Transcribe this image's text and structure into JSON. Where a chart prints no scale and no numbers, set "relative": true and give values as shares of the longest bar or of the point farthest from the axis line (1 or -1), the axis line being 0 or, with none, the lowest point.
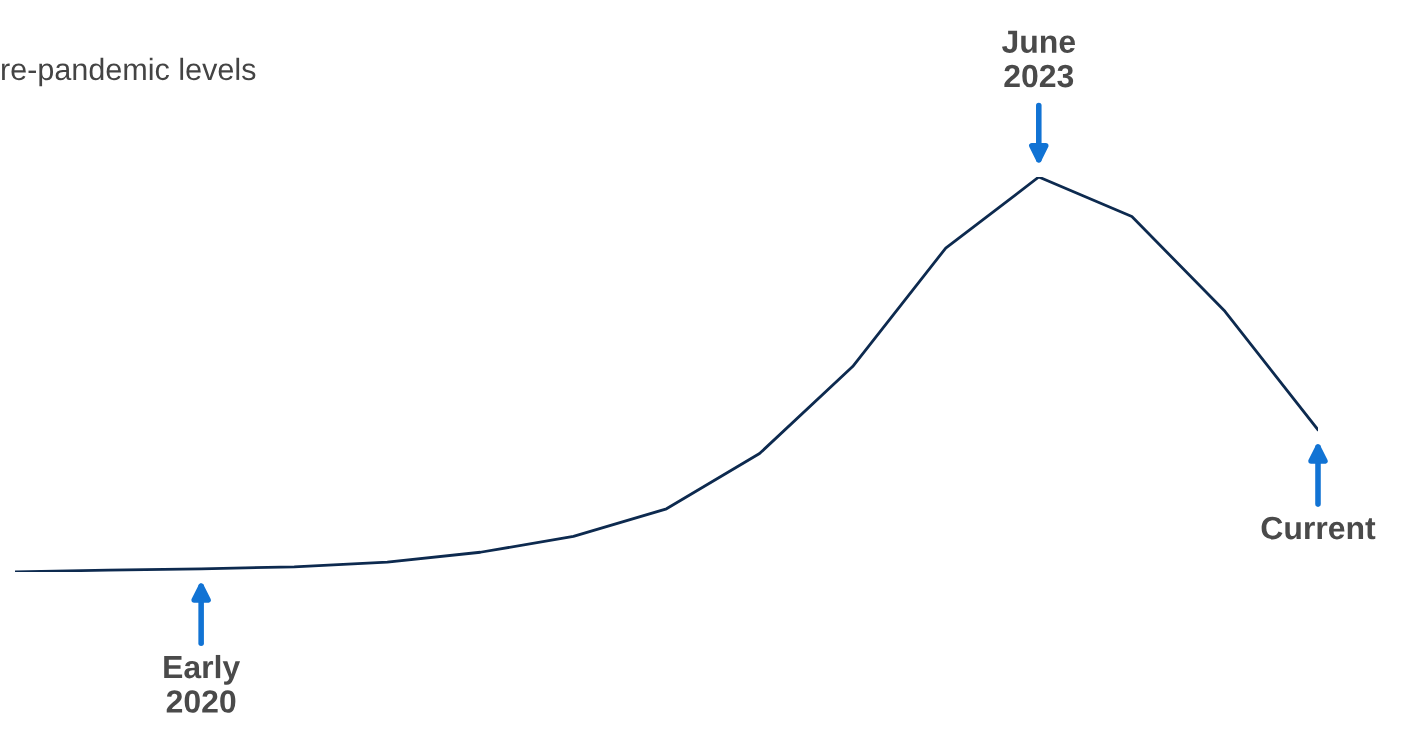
{
  "chart_data": {
    "type": "line",
    "relative": true,
    "title": "re-pandemic levels",
    "categories": [
      null,
      null,
      null,
      null,
      null,
      null,
      null,
      null,
      null,
      null,
      null,
      null,
      null,
      null,
      null
    ],
    "series": [
      {
        "color": "#0d2a4f",
        "values": [
          0,
          0.005,
          0.008,
          0.013,
          0.025,
          0.05,
          0.09,
          0.16,
          0.3,
          0.52,
          0.82,
          1,
          0.9,
          0.66,
          0.36
        ]
      }
    ],
    "annotations": [
      {
        "text": "Early\n2020",
        "y": 0.008
      },
      {
        "text": "June\n2023",
        "y": 1
      },
      {
        "text": "Current",
        "y": 0.36
      }
    ],
    "legend": false,
    "marker": "none",
    "line_style": "solid"
  }
}
